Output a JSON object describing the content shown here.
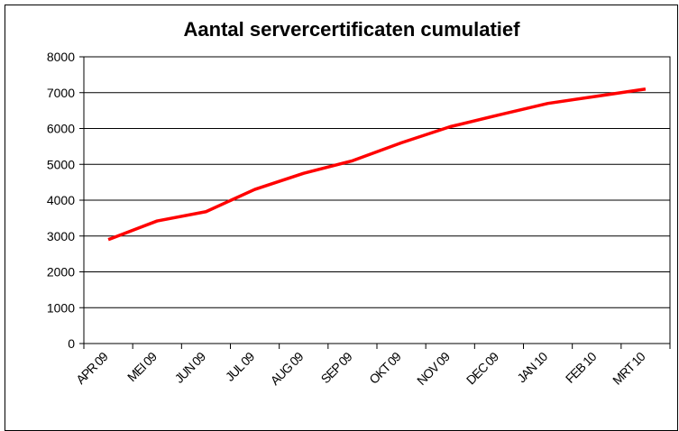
{
  "chart_data": {
    "type": "line",
    "title": "Aantal servercertificaten cumulatief",
    "categories": [
      "APR 09",
      "MEI 09",
      "JUN 09",
      "JUL 09",
      "AUG 09",
      "SEP 09",
      "OKT 09",
      "NOV 09",
      "DEC 09",
      "JAN 10",
      "FEB 10",
      "MRT 10"
    ],
    "values": [
      2900,
      3420,
      3680,
      4300,
      4750,
      5100,
      5600,
      6050,
      6380,
      6700,
      6900,
      7100
    ],
    "color": "#ff0000",
    "ylim": [
      0,
      8000
    ],
    "yticks": [
      0,
      1000,
      2000,
      3000,
      4000,
      5000,
      6000,
      7000,
      8000
    ],
    "grid": true
  }
}
